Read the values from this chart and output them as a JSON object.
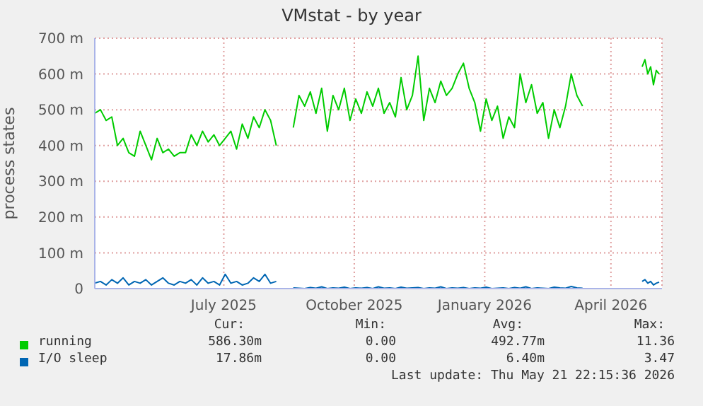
{
  "chart_data": {
    "type": "line",
    "title": "VMstat - by year",
    "ylabel": "process states",
    "x": [
      "2025-04-16",
      "2025-04-20",
      "2025-04-24",
      "2025-04-28",
      "2025-05-02",
      "2025-05-06",
      "2025-05-10",
      "2025-05-14",
      "2025-05-18",
      "2025-05-22",
      "2025-05-26",
      "2025-05-30",
      "2025-06-03",
      "2025-06-07",
      "2025-06-11",
      "2025-06-15",
      "2025-06-19",
      "2025-06-23",
      "2025-06-27",
      "2025-07-01",
      "2025-07-05",
      "2025-07-09",
      "2025-07-13",
      "2025-07-17",
      "2025-07-21",
      "2025-07-25",
      "2025-07-29",
      "2025-08-02",
      "2025-08-06",
      "2025-08-10",
      "2025-08-14",
      "2025-08-18",
      "2025-08-22",
      "2025-08-28",
      "2025-09-03",
      "2025-09-07",
      "2025-09-11",
      "2025-09-15",
      "2025-09-19",
      "2025-09-23",
      "2025-09-27",
      "2025-10-01",
      "2025-10-05",
      "2025-10-09",
      "2025-10-13",
      "2025-10-17",
      "2025-10-21",
      "2025-10-25",
      "2025-10-29",
      "2025-11-02",
      "2025-11-06",
      "2025-11-10",
      "2025-11-14",
      "2025-11-18",
      "2025-11-22",
      "2025-11-26",
      "2025-11-30",
      "2025-12-04",
      "2025-12-08",
      "2025-12-12",
      "2025-12-16",
      "2025-12-20",
      "2025-12-24",
      "2025-12-28",
      "2026-01-01",
      "2026-01-05",
      "2026-01-09",
      "2026-01-13",
      "2026-01-17",
      "2026-01-21",
      "2026-01-25",
      "2026-01-29",
      "2026-02-02",
      "2026-02-06",
      "2026-02-10",
      "2026-02-14",
      "2026-02-18",
      "2026-02-22",
      "2026-02-26",
      "2026-03-02",
      "2026-03-06",
      "2026-03-10",
      "2026-03-14",
      "2026-03-18",
      "2026-03-22",
      "2026-03-26",
      "2026-04-15",
      "2026-05-07",
      "2026-05-09",
      "2026-05-11",
      "2026-05-13",
      "2026-05-15",
      "2026-05-17",
      "2026-05-19"
    ],
    "series": [
      {
        "name": "running",
        "color": "#00cc00",
        "values": [
          490,
          500,
          470,
          480,
          400,
          420,
          380,
          370,
          440,
          400,
          360,
          420,
          380,
          390,
          370,
          380,
          380,
          430,
          400,
          440,
          410,
          430,
          400,
          420,
          440,
          390,
          460,
          420,
          480,
          450,
          500,
          470,
          400,
          null,
          450,
          540,
          510,
          550,
          490,
          560,
          440,
          540,
          500,
          560,
          470,
          530,
          490,
          550,
          510,
          560,
          490,
          520,
          480,
          590,
          500,
          540,
          650,
          470,
          560,
          520,
          580,
          540,
          560,
          600,
          630,
          560,
          520,
          440,
          530,
          470,
          510,
          420,
          480,
          450,
          600,
          520,
          570,
          490,
          520,
          420,
          500,
          450,
          510,
          600,
          540,
          510,
          null,
          620,
          640,
          600,
          620,
          570,
          610,
          600
        ]
      },
      {
        "name": "I/O sleep",
        "color": "#0066b3",
        "values": [
          15,
          20,
          10,
          25,
          15,
          30,
          10,
          20,
          15,
          25,
          10,
          20,
          30,
          15,
          10,
          20,
          15,
          25,
          10,
          30,
          15,
          20,
          10,
          40,
          15,
          20,
          10,
          15,
          30,
          20,
          40,
          15,
          20,
          null,
          2,
          1,
          0,
          3,
          1,
          5,
          0,
          2,
          1,
          4,
          0,
          2,
          1,
          3,
          0,
          5,
          1,
          2,
          0,
          4,
          1,
          2,
          3,
          0,
          2,
          1,
          5,
          0,
          2,
          1,
          3,
          0,
          2,
          1,
          4,
          0,
          1,
          2,
          0,
          3,
          1,
          5,
          0,
          2,
          1,
          0,
          4,
          2,
          1,
          6,
          2,
          1,
          null,
          20,
          25,
          15,
          20,
          10,
          15,
          18
        ]
      }
    ],
    "xlim": [
      "2025-04-16",
      "2026-05-21"
    ],
    "xticks": [
      {
        "value": "2025-07-16",
        "label": "July 2025"
      },
      {
        "value": "2025-10-16",
        "label": "October 2025"
      },
      {
        "value": "2026-01-16",
        "label": "January 2026"
      },
      {
        "value": "2026-04-15",
        "label": "April 2026"
      }
    ],
    "ylim": [
      0,
      700
    ],
    "yticks": [
      {
        "value": 0,
        "label": "0"
      },
      {
        "value": 100,
        "label": "100 m"
      },
      {
        "value": 200,
        "label": "200 m"
      },
      {
        "value": 300,
        "label": "300 m"
      },
      {
        "value": 400,
        "label": "400 m"
      },
      {
        "value": 500,
        "label": "500 m"
      },
      {
        "value": 600,
        "label": "600 m"
      },
      {
        "value": 700,
        "label": "700 m"
      }
    ],
    "grid": true,
    "legend": "bottom",
    "annotations": [
      "Cur:",
      "Min:",
      "Avg:",
      "Max:",
      "586.30m",
      "0.00",
      "492.77m",
      "11.36",
      "17.86m",
      "0.00",
      "6.40m",
      "3.47",
      "Last update: Thu May 21 22:15:36 2026"
    ]
  }
}
